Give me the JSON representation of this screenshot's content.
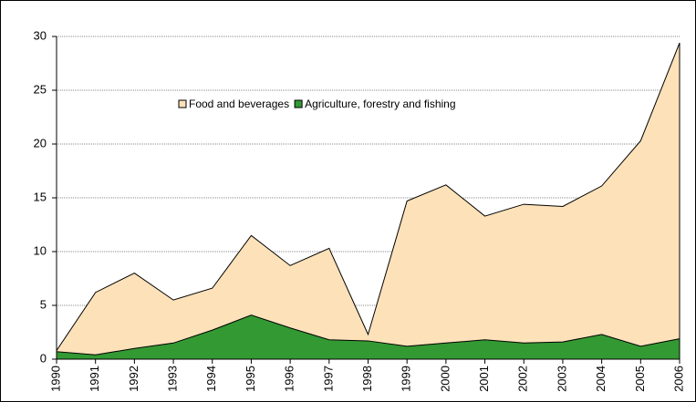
{
  "chart_data": {
    "type": "area",
    "categories": [
      "1990",
      "1991",
      "1992",
      "1993",
      "1994",
      "1995",
      "1996",
      "1997",
      "1998",
      "1999",
      "2000",
      "2001",
      "2002",
      "2003",
      "2004",
      "2005",
      "2006"
    ],
    "series": [
      {
        "name": "Food and beverages",
        "color": "#fde1b9",
        "values": [
          0.8,
          6.2,
          8.0,
          5.5,
          6.6,
          11.5,
          8.7,
          10.3,
          2.3,
          14.7,
          16.2,
          13.3,
          14.4,
          14.2,
          16.1,
          20.3,
          29.4
        ]
      },
      {
        "name": "Agriculture, forestry and fishing",
        "color": "#339933",
        "values": [
          0.7,
          0.4,
          1.0,
          1.5,
          2.7,
          4.1,
          2.9,
          1.8,
          1.7,
          1.2,
          1.5,
          1.8,
          1.5,
          1.6,
          2.3,
          1.2,
          1.9
        ]
      }
    ],
    "ylim": [
      0,
      30
    ],
    "yticks": [
      0,
      5,
      10,
      15,
      20,
      25,
      30
    ],
    "grid": true
  }
}
